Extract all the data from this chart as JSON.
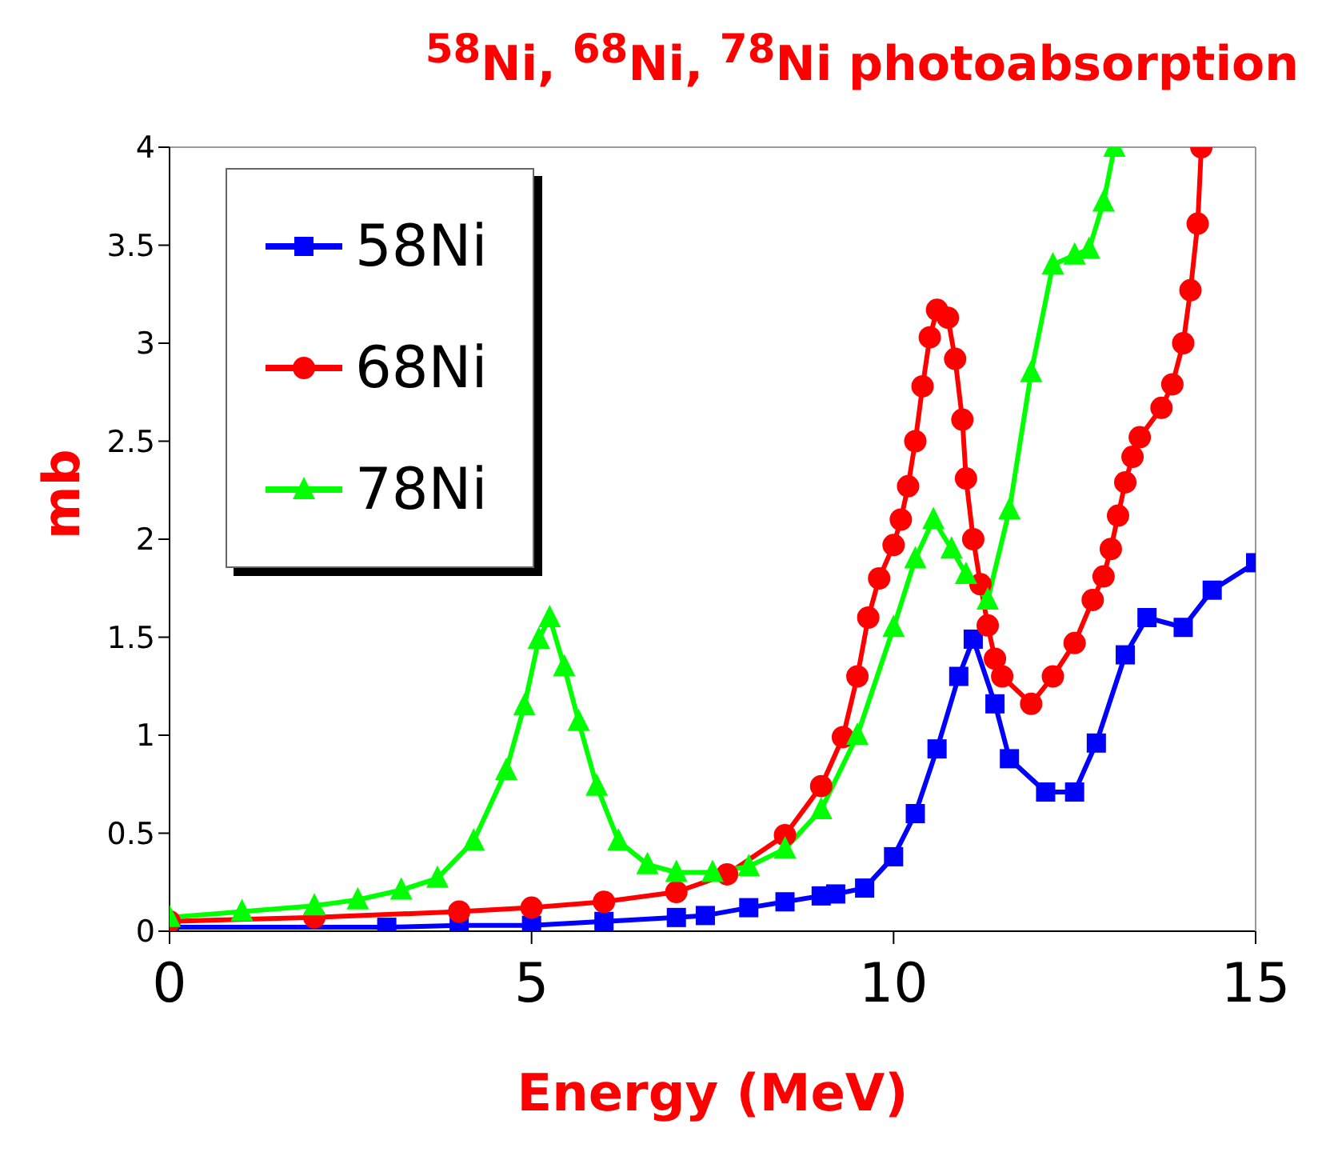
{
  "chart_data": {
    "type": "line",
    "title": "$^{58}$Ni, $^{68}$Ni, $^{78}$Ni photoabsorption",
    "xlabel": "Energy (MeV)",
    "ylabel": "mb",
    "xlim": [
      0,
      15
    ],
    "xticks": [
      0,
      5,
      10,
      15
    ],
    "ylim": [
      0,
      4
    ],
    "yticks": [
      0,
      0.5,
      1,
      1.5,
      2,
      2.5,
      3,
      3.5,
      4
    ],
    "legend": "top left",
    "line_style": "solid",
    "series": [
      {
        "name": "58Ni",
        "color": "#0000ff",
        "marker": "square",
        "x": [
          0,
          3,
          4,
          5,
          6,
          7,
          7.4,
          8,
          8.5,
          9,
          9.2,
          9.6,
          10,
          10.3,
          10.6,
          10.9,
          11.1,
          11.4,
          11.6,
          12.1,
          12.5,
          12.8,
          13.2,
          13.5,
          14,
          14.4,
          15
        ],
        "values": [
          0.02,
          0.02,
          0.03,
          0.03,
          0.05,
          0.07,
          0.08,
          0.12,
          0.15,
          0.18,
          0.19,
          0.22,
          0.38,
          0.6,
          0.93,
          1.3,
          1.49,
          1.16,
          0.88,
          0.71,
          0.71,
          0.96,
          1.41,
          1.6,
          1.55,
          1.74,
          1.88
        ]
      },
      {
        "name": "68Ni",
        "color": "#ff0000",
        "marker": "circle",
        "x": [
          0,
          2,
          4,
          5,
          6,
          7,
          7.7,
          8.5,
          9,
          9.3,
          9.5,
          9.65,
          9.8,
          10,
          10.1,
          10.2,
          10.3,
          10.4,
          10.5,
          10.6,
          10.75,
          10.85,
          10.95,
          11,
          11.1,
          11.2,
          11.3,
          11.4,
          11.5,
          11.9,
          12.2,
          12.5,
          12.75,
          12.9,
          13,
          13.1,
          13.2,
          13.3,
          13.4,
          13.7,
          13.85,
          14,
          14.1,
          14.2,
          14.25
        ],
        "values": [
          0.05,
          0.07,
          0.1,
          0.12,
          0.15,
          0.2,
          0.29,
          0.49,
          0.74,
          0.99,
          1.3,
          1.6,
          1.8,
          1.97,
          2.1,
          2.27,
          2.5,
          2.78,
          3.03,
          3.17,
          3.13,
          2.92,
          2.61,
          2.31,
          2.0,
          1.77,
          1.56,
          1.39,
          1.3,
          1.16,
          1.3,
          1.47,
          1.69,
          1.81,
          1.95,
          2.12,
          2.29,
          2.42,
          2.52,
          2.67,
          2.79,
          3.0,
          3.27,
          3.61,
          4
        ]
      },
      {
        "name": "78Ni",
        "color": "#00ff00",
        "marker": "triangle",
        "x": [
          0,
          1,
          2,
          2.6,
          3.2,
          3.7,
          4.2,
          4.65,
          4.9,
          5.1,
          5.25,
          5.45,
          5.65,
          5.9,
          6.2,
          6.6,
          7,
          7.5,
          8,
          8.5,
          9,
          9.5,
          10,
          10.3,
          10.55,
          10.8,
          11,
          11.3,
          11.6,
          11.9,
          12.2,
          12.5,
          12.7,
          12.9,
          13.05
        ],
        "values": [
          0.07,
          0.1,
          0.13,
          0.16,
          0.21,
          0.27,
          0.46,
          0.82,
          1.15,
          1.49,
          1.6,
          1.35,
          1.07,
          0.74,
          0.46,
          0.34,
          0.3,
          0.3,
          0.33,
          0.42,
          0.62,
          1.0,
          1.55,
          1.9,
          2.1,
          1.95,
          1.82,
          1.69,
          2.15,
          2.85,
          3.4,
          3.45,
          3.48,
          3.72,
          4
        ]
      }
    ]
  }
}
